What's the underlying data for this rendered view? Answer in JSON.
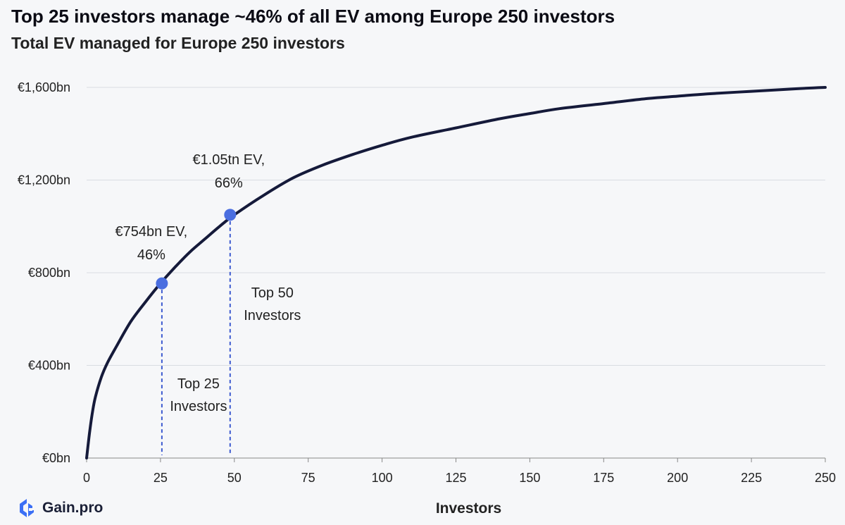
{
  "title": "Top 25 investors manage ~46% of all EV among Europe 250 investors",
  "subtitle": "Total EV managed for Europe 250 investors",
  "logo_text": "Gain.pro",
  "colors": {
    "line": "#151a3a",
    "marker": "#4a6ee0",
    "dashed": "#3d5bd0",
    "grid": "#d9dce2"
  },
  "chart_data": {
    "type": "line",
    "title": "Top 25 investors manage ~46% of all EV among Europe 250 investors",
    "subtitle": "Total EV managed for Europe 250 investors",
    "xlabel": "Investors",
    "ylabel": "",
    "xlim": [
      0,
      250
    ],
    "ylim": [
      0,
      1600
    ],
    "x_ticks": [
      0,
      25,
      50,
      75,
      100,
      125,
      150,
      175,
      200,
      225,
      250
    ],
    "y_ticks": [
      0,
      400,
      800,
      1200,
      1600
    ],
    "y_tick_labels": [
      "€0bn",
      "€400bn",
      "€800bn",
      "€1,200bn",
      "€1,600bn"
    ],
    "grid": "horizontal",
    "series": [
      {
        "name": "Total EV managed",
        "x": [
          0,
          1,
          2,
          3,
          5,
          7,
          10,
          15,
          20,
          25,
          30,
          35,
          40,
          45,
          50,
          60,
          70,
          80,
          90,
          100,
          110,
          125,
          140,
          150,
          160,
          175,
          190,
          200,
          210,
          225,
          240,
          250
        ],
        "y": [
          0,
          110,
          200,
          265,
          350,
          410,
          480,
          590,
          675,
          754,
          825,
          890,
          945,
          1000,
          1050,
          1135,
          1210,
          1265,
          1310,
          1350,
          1385,
          1425,
          1465,
          1487,
          1508,
          1530,
          1552,
          1562,
          1572,
          1583,
          1594,
          1600
        ]
      }
    ],
    "highlights": [
      {
        "x": 25,
        "y": 754,
        "label_lines": [
          "€754bn EV,",
          "46%"
        ],
        "group_lines": [
          "Top 25",
          "Investors"
        ]
      },
      {
        "x": 50,
        "y": 1050,
        "label_lines": [
          "€1.05tn EV,",
          "66%"
        ],
        "group_lines": [
          "Top 50",
          "Investors"
        ]
      }
    ]
  }
}
